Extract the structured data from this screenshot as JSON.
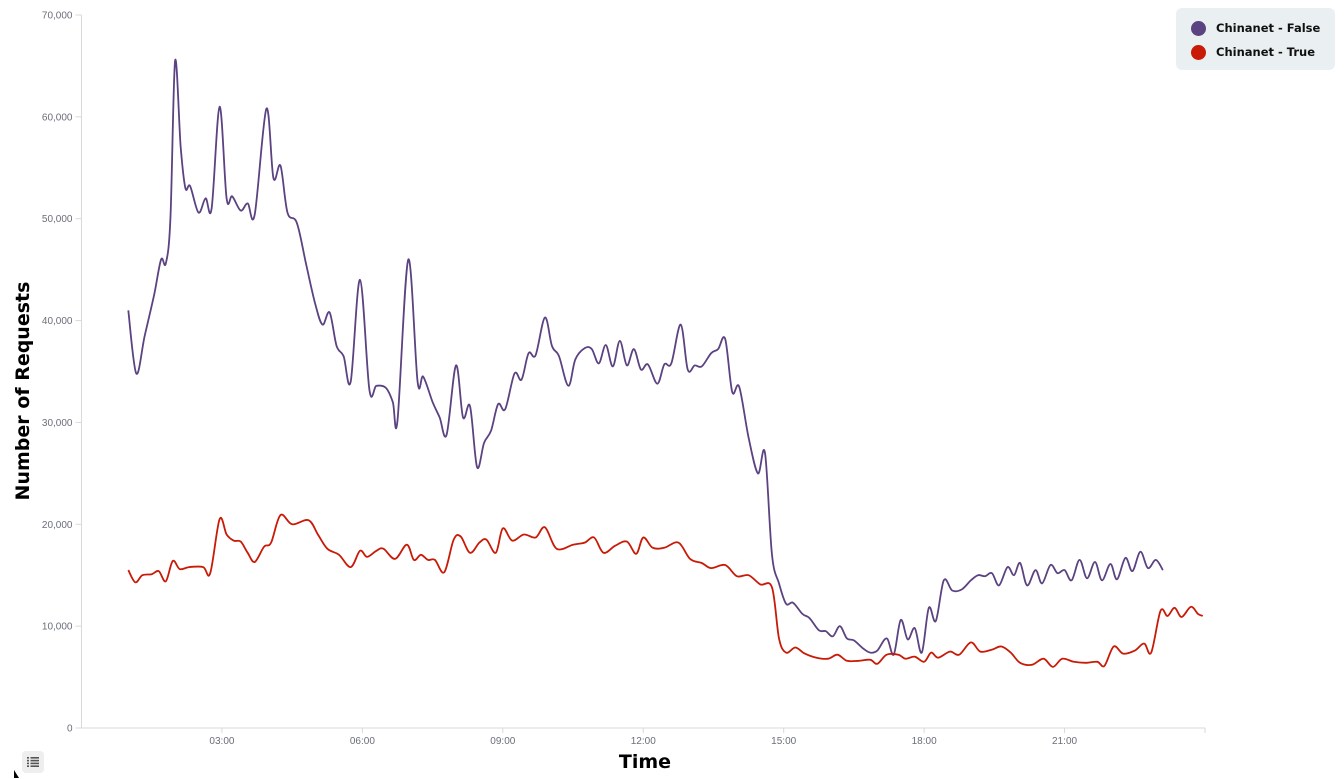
{
  "chart_data": {
    "type": "line",
    "title": "",
    "xlabel": "Time",
    "ylabel": "Number of Requests",
    "ylim": [
      0,
      70000
    ],
    "xlim_hours": [
      0,
      24
    ],
    "y_ticks": [
      {
        "value": 0,
        "label": "0"
      },
      {
        "value": 10000,
        "label": "10,000"
      },
      {
        "value": 20000,
        "label": "20,000"
      },
      {
        "value": 30000,
        "label": "30,000"
      },
      {
        "value": 40000,
        "label": "40,000"
      },
      {
        "value": 50000,
        "label": "50,000"
      },
      {
        "value": 60000,
        "label": "60,000"
      },
      {
        "value": 70000,
        "label": "70,000"
      }
    ],
    "x_ticks": [
      {
        "hour": 3,
        "label": "03:00"
      },
      {
        "hour": 6,
        "label": "06:00"
      },
      {
        "hour": 9,
        "label": "09:00"
      },
      {
        "hour": 12,
        "label": "12:00"
      },
      {
        "hour": 15,
        "label": "15:00"
      },
      {
        "hour": 18,
        "label": "18:00"
      },
      {
        "hour": 21,
        "label": "21:00"
      }
    ],
    "grid": false,
    "legend_position": "top-right",
    "series": [
      {
        "name": "Chinanet - False",
        "color": "#5b4280",
        "points": [
          [
            1.0,
            41000
          ],
          [
            1.17,
            34800
          ],
          [
            1.35,
            38500
          ],
          [
            1.55,
            42500
          ],
          [
            1.7,
            46000
          ],
          [
            1.8,
            45600
          ],
          [
            1.9,
            50000
          ],
          [
            2.0,
            65500
          ],
          [
            2.12,
            57000
          ],
          [
            2.22,
            53000
          ],
          [
            2.32,
            53200
          ],
          [
            2.5,
            50600
          ],
          [
            2.65,
            52000
          ],
          [
            2.78,
            51000
          ],
          [
            2.95,
            61000
          ],
          [
            3.1,
            52000
          ],
          [
            3.22,
            52200
          ],
          [
            3.4,
            50800
          ],
          [
            3.55,
            51500
          ],
          [
            3.7,
            50400
          ],
          [
            3.95,
            60800
          ],
          [
            4.1,
            54000
          ],
          [
            4.25,
            55200
          ],
          [
            4.4,
            50600
          ],
          [
            4.6,
            49600
          ],
          [
            4.8,
            45500
          ],
          [
            5.0,
            41500
          ],
          [
            5.15,
            39600
          ],
          [
            5.3,
            40800
          ],
          [
            5.45,
            37500
          ],
          [
            5.6,
            36500
          ],
          [
            5.75,
            34000
          ],
          [
            5.95,
            44000
          ],
          [
            6.15,
            33200
          ],
          [
            6.3,
            33600
          ],
          [
            6.5,
            33400
          ],
          [
            6.65,
            32000
          ],
          [
            6.75,
            30200
          ],
          [
            6.98,
            46000
          ],
          [
            7.18,
            34000
          ],
          [
            7.3,
            34500
          ],
          [
            7.5,
            32000
          ],
          [
            7.65,
            30500
          ],
          [
            7.8,
            28800
          ],
          [
            8.0,
            35600
          ],
          [
            8.15,
            30500
          ],
          [
            8.3,
            31600
          ],
          [
            8.45,
            25600
          ],
          [
            8.6,
            28000
          ],
          [
            8.75,
            29200
          ],
          [
            8.9,
            31800
          ],
          [
            9.05,
            31300
          ],
          [
            9.25,
            34800
          ],
          [
            9.4,
            34200
          ],
          [
            9.55,
            36800
          ],
          [
            9.7,
            36600
          ],
          [
            9.9,
            40300
          ],
          [
            10.05,
            37500
          ],
          [
            10.2,
            36500
          ],
          [
            10.4,
            33600
          ],
          [
            10.55,
            36200
          ],
          [
            10.75,
            37300
          ],
          [
            10.9,
            37200
          ],
          [
            11.05,
            35800
          ],
          [
            11.2,
            37600
          ],
          [
            11.35,
            35500
          ],
          [
            11.5,
            38000
          ],
          [
            11.65,
            35600
          ],
          [
            11.8,
            37200
          ],
          [
            11.95,
            35200
          ],
          [
            12.1,
            35700
          ],
          [
            12.3,
            33800
          ],
          [
            12.45,
            35700
          ],
          [
            12.6,
            35800
          ],
          [
            12.8,
            39600
          ],
          [
            12.95,
            35200
          ],
          [
            13.1,
            35600
          ],
          [
            13.25,
            35500
          ],
          [
            13.45,
            36800
          ],
          [
            13.6,
            37200
          ],
          [
            13.75,
            38200
          ],
          [
            13.9,
            33000
          ],
          [
            14.05,
            33500
          ],
          [
            14.25,
            28500
          ],
          [
            14.45,
            25000
          ],
          [
            14.6,
            27000
          ],
          [
            14.75,
            17000
          ],
          [
            14.9,
            14200
          ],
          [
            15.05,
            12200
          ],
          [
            15.2,
            12300
          ],
          [
            15.4,
            11200
          ],
          [
            15.55,
            10800
          ],
          [
            15.75,
            9600
          ],
          [
            15.9,
            9500
          ],
          [
            16.05,
            9000
          ],
          [
            16.2,
            10000
          ],
          [
            16.35,
            8800
          ],
          [
            16.5,
            8600
          ],
          [
            16.7,
            7800
          ],
          [
            16.85,
            7400
          ],
          [
            17.0,
            7600
          ],
          [
            17.2,
            8800
          ],
          [
            17.35,
            7200
          ],
          [
            17.5,
            10600
          ],
          [
            17.65,
            8700
          ],
          [
            17.8,
            9800
          ],
          [
            17.95,
            7400
          ],
          [
            18.1,
            11800
          ],
          [
            18.25,
            10500
          ],
          [
            18.42,
            14500
          ],
          [
            18.6,
            13500
          ],
          [
            18.8,
            13600
          ],
          [
            19.0,
            14500
          ],
          [
            19.15,
            15000
          ],
          [
            19.3,
            14900
          ],
          [
            19.45,
            15200
          ],
          [
            19.6,
            14000
          ],
          [
            19.78,
            15800
          ],
          [
            19.92,
            15000
          ],
          [
            20.05,
            16200
          ],
          [
            20.2,
            14000
          ],
          [
            20.38,
            15500
          ],
          [
            20.52,
            14200
          ],
          [
            20.7,
            16000
          ],
          [
            20.85,
            15200
          ],
          [
            21.0,
            15500
          ],
          [
            21.15,
            14500
          ],
          [
            21.32,
            16500
          ],
          [
            21.48,
            14700
          ],
          [
            21.65,
            16300
          ],
          [
            21.8,
            14500
          ],
          [
            21.98,
            16100
          ],
          [
            22.12,
            14600
          ],
          [
            22.3,
            16700
          ],
          [
            22.45,
            15400
          ],
          [
            22.62,
            17300
          ],
          [
            22.78,
            15700
          ],
          [
            22.95,
            16500
          ],
          [
            23.1,
            15500
          ]
        ]
      },
      {
        "name": "Chinanet - True",
        "color": "#c81a06",
        "points": [
          [
            1.0,
            15500
          ],
          [
            1.15,
            14300
          ],
          [
            1.3,
            15000
          ],
          [
            1.5,
            15100
          ],
          [
            1.65,
            15400
          ],
          [
            1.8,
            14400
          ],
          [
            1.95,
            16400
          ],
          [
            2.1,
            15600
          ],
          [
            2.3,
            15800
          ],
          [
            2.6,
            15800
          ],
          [
            2.75,
            15200
          ],
          [
            2.95,
            20500
          ],
          [
            3.1,
            19000
          ],
          [
            3.25,
            18400
          ],
          [
            3.4,
            18300
          ],
          [
            3.55,
            17200
          ],
          [
            3.7,
            16300
          ],
          [
            3.9,
            17800
          ],
          [
            4.05,
            18200
          ],
          [
            4.25,
            20900
          ],
          [
            4.5,
            20000
          ],
          [
            4.85,
            20400
          ],
          [
            5.05,
            19000
          ],
          [
            5.25,
            17600
          ],
          [
            5.5,
            17000
          ],
          [
            5.75,
            15800
          ],
          [
            5.95,
            17400
          ],
          [
            6.1,
            16800
          ],
          [
            6.3,
            17400
          ],
          [
            6.45,
            17600
          ],
          [
            6.7,
            16600
          ],
          [
            6.95,
            18000
          ],
          [
            7.1,
            16500
          ],
          [
            7.25,
            17000
          ],
          [
            7.4,
            16500
          ],
          [
            7.55,
            16500
          ],
          [
            7.75,
            15300
          ],
          [
            7.95,
            18500
          ],
          [
            8.1,
            18800
          ],
          [
            8.3,
            17200
          ],
          [
            8.5,
            18200
          ],
          [
            8.65,
            18500
          ],
          [
            8.85,
            17200
          ],
          [
            9.0,
            19600
          ],
          [
            9.2,
            18400
          ],
          [
            9.45,
            19000
          ],
          [
            9.7,
            18700
          ],
          [
            9.9,
            19700
          ],
          [
            10.15,
            17600
          ],
          [
            10.5,
            18000
          ],
          [
            10.75,
            18200
          ],
          [
            10.95,
            18700
          ],
          [
            11.15,
            17200
          ],
          [
            11.4,
            17900
          ],
          [
            11.65,
            18300
          ],
          [
            11.85,
            17100
          ],
          [
            12.0,
            18700
          ],
          [
            12.2,
            17700
          ],
          [
            12.45,
            17700
          ],
          [
            12.75,
            18200
          ],
          [
            13.0,
            16600
          ],
          [
            13.25,
            16200
          ],
          [
            13.45,
            15700
          ],
          [
            13.75,
            16000
          ],
          [
            14.0,
            14900
          ],
          [
            14.25,
            15000
          ],
          [
            14.5,
            14100
          ],
          [
            14.75,
            13800
          ],
          [
            14.9,
            8800
          ],
          [
            15.05,
            7400
          ],
          [
            15.25,
            7900
          ],
          [
            15.45,
            7300
          ],
          [
            15.7,
            6900
          ],
          [
            15.95,
            6800
          ],
          [
            16.15,
            7200
          ],
          [
            16.35,
            6600
          ],
          [
            16.6,
            6600
          ],
          [
            16.85,
            6700
          ],
          [
            17.0,
            6300
          ],
          [
            17.2,
            7200
          ],
          [
            17.45,
            7200
          ],
          [
            17.6,
            6800
          ],
          [
            17.8,
            7000
          ],
          [
            18.0,
            6500
          ],
          [
            18.15,
            7400
          ],
          [
            18.3,
            6900
          ],
          [
            18.55,
            7500
          ],
          [
            18.75,
            7200
          ],
          [
            19.0,
            8400
          ],
          [
            19.2,
            7500
          ],
          [
            19.45,
            7700
          ],
          [
            19.65,
            8000
          ],
          [
            19.85,
            7400
          ],
          [
            20.05,
            6400
          ],
          [
            20.3,
            6200
          ],
          [
            20.55,
            6800
          ],
          [
            20.75,
            6000
          ],
          [
            20.95,
            6800
          ],
          [
            21.2,
            6500
          ],
          [
            21.45,
            6400
          ],
          [
            21.7,
            6500
          ],
          [
            21.85,
            6100
          ],
          [
            22.05,
            8000
          ],
          [
            22.25,
            7300
          ],
          [
            22.5,
            7600
          ],
          [
            22.7,
            8300
          ],
          [
            22.85,
            7400
          ],
          [
            23.05,
            11500
          ],
          [
            23.2,
            11000
          ],
          [
            23.35,
            11800
          ],
          [
            23.5,
            10900
          ],
          [
            23.7,
            11900
          ],
          [
            23.85,
            11200
          ],
          [
            23.95,
            11000
          ]
        ]
      }
    ]
  },
  "legend": {
    "items": [
      {
        "label": "Chinanet - False",
        "color": "#5b4280"
      },
      {
        "label": "Chinanet - True",
        "color": "#c81a06"
      }
    ]
  },
  "axes": {
    "x_title": "Time",
    "y_title": "Number of Requests"
  },
  "controls": {
    "list_icon": "list-icon"
  }
}
